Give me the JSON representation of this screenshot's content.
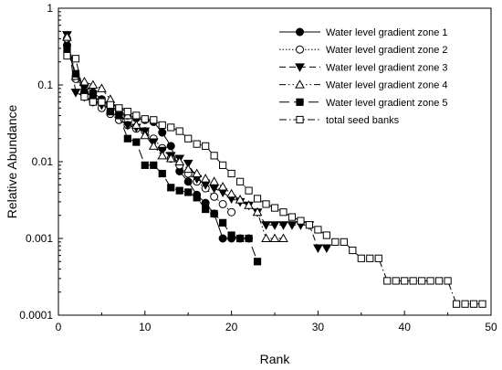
{
  "chart_data": {
    "type": "scatter",
    "xlabel": "Rank",
    "ylabel": "Relative Abundance",
    "xlim": [
      0,
      50
    ],
    "ylim": [
      0.0001,
      1
    ],
    "y_scale": "log",
    "x_ticks": [
      0,
      10,
      20,
      30,
      40,
      50
    ],
    "y_ticks": [
      {
        "value": 0.0001,
        "label": "0.0001"
      },
      {
        "value": 0.001,
        "label": "0.001"
      },
      {
        "value": 0.01,
        "label": "0.01"
      },
      {
        "value": 0.1,
        "label": "0.1"
      },
      {
        "value": 1,
        "label": "1"
      }
    ],
    "grid": false,
    "legend_position": "top-right",
    "series": [
      {
        "name": "Water level gradient zone 1",
        "marker": "filled-circle",
        "dash": "solid",
        "x": [
          1,
          2,
          3,
          4,
          5,
          6,
          7,
          8,
          9,
          10,
          11,
          12,
          13,
          14,
          15,
          16,
          17,
          18,
          19,
          20,
          21,
          22
        ],
        "y": [
          0.33,
          0.13,
          0.1,
          0.08,
          0.065,
          0.053,
          0.046,
          0.04,
          0.037,
          0.035,
          0.033,
          0.024,
          0.016,
          0.0075,
          0.0055,
          0.0037,
          0.0029,
          0.0021,
          0.001,
          0.001,
          0.001,
          0.001
        ]
      },
      {
        "name": "Water level gradient zone 2",
        "marker": "open-circle",
        "dash": "dotted",
        "x": [
          1,
          2,
          3,
          4,
          5,
          6,
          7,
          8,
          9,
          10,
          11,
          12,
          13,
          14,
          15,
          16,
          17,
          18,
          19,
          20
        ],
        "y": [
          0.4,
          0.12,
          0.08,
          0.06,
          0.05,
          0.042,
          0.035,
          0.03,
          0.027,
          0.025,
          0.02,
          0.015,
          0.011,
          0.009,
          0.007,
          0.0055,
          0.0045,
          0.0035,
          0.0028,
          0.0022
        ]
      },
      {
        "name": "Water level gradient zone 3",
        "marker": "filled-triangle-down",
        "dash": "dashed",
        "x": [
          1,
          2,
          3,
          4,
          5,
          6,
          7,
          8,
          9,
          10,
          11,
          12,
          13,
          14,
          15,
          16,
          17,
          18,
          19,
          20,
          21,
          22,
          23,
          24,
          25,
          26,
          27,
          28,
          29,
          30,
          31
        ],
        "y": [
          0.45,
          0.08,
          0.07,
          0.06,
          0.055,
          0.05,
          0.045,
          0.03,
          0.028,
          0.025,
          0.018,
          0.014,
          0.012,
          0.011,
          0.0095,
          0.006,
          0.005,
          0.0045,
          0.004,
          0.0033,
          0.003,
          0.0027,
          0.0022,
          0.0015,
          0.0015,
          0.0015,
          0.0015,
          0.0015,
          0.0015,
          0.00075,
          0.00075
        ]
      },
      {
        "name": "Water level gradient zone 4",
        "marker": "open-triangle-up",
        "dash": "dash-dot-dot",
        "x": [
          1,
          2,
          3,
          4,
          5,
          6,
          7,
          8,
          9,
          10,
          11,
          12,
          13,
          14,
          15,
          16,
          17,
          18,
          19,
          20,
          21,
          22,
          23,
          24,
          25,
          26
        ],
        "y": [
          0.42,
          0.13,
          0.11,
          0.1,
          0.09,
          0.065,
          0.045,
          0.04,
          0.03,
          0.022,
          0.016,
          0.012,
          0.011,
          0.01,
          0.008,
          0.007,
          0.006,
          0.0055,
          0.0047,
          0.0038,
          0.0032,
          0.0027,
          0.0022,
          0.001,
          0.001,
          0.001
        ]
      },
      {
        "name": "Water level gradient zone 5",
        "marker": "filled-square",
        "dash": "long-dash",
        "x": [
          1,
          2,
          3,
          4,
          5,
          6,
          7,
          8,
          9,
          10,
          11,
          12,
          13,
          14,
          15,
          16,
          17,
          18,
          19,
          20,
          21,
          22,
          23
        ],
        "y": [
          0.3,
          0.14,
          0.08,
          0.07,
          0.06,
          0.045,
          0.04,
          0.02,
          0.018,
          0.009,
          0.009,
          0.007,
          0.0046,
          0.0042,
          0.004,
          0.0034,
          0.0024,
          0.0021,
          0.0016,
          0.0011,
          0.001,
          0.001,
          0.0005
        ]
      },
      {
        "name": "total seed banks",
        "marker": "open-square",
        "dash": "dash-dot",
        "x": [
          1,
          2,
          3,
          4,
          5,
          6,
          7,
          8,
          9,
          10,
          11,
          12,
          13,
          14,
          15,
          16,
          17,
          18,
          19,
          20,
          21,
          22,
          23,
          24,
          25,
          26,
          27,
          28,
          29,
          30,
          31,
          32,
          33,
          34,
          35,
          36,
          37,
          38,
          39,
          40,
          41,
          42,
          43,
          44,
          45,
          46,
          47,
          48,
          49
        ],
        "y": [
          0.24,
          0.22,
          0.07,
          0.06,
          0.06,
          0.055,
          0.05,
          0.045,
          0.04,
          0.036,
          0.035,
          0.03,
          0.028,
          0.025,
          0.02,
          0.017,
          0.016,
          0.012,
          0.009,
          0.007,
          0.0055,
          0.0042,
          0.0033,
          0.0028,
          0.0025,
          0.0022,
          0.0019,
          0.0017,
          0.0015,
          0.0013,
          0.0011,
          0.0009,
          0.0009,
          0.0007,
          0.00055,
          0.00055,
          0.00055,
          0.00028,
          0.00028,
          0.00028,
          0.00028,
          0.00028,
          0.00028,
          0.00028,
          0.00028,
          0.00014,
          0.00014,
          0.00014,
          0.00014
        ]
      }
    ]
  }
}
